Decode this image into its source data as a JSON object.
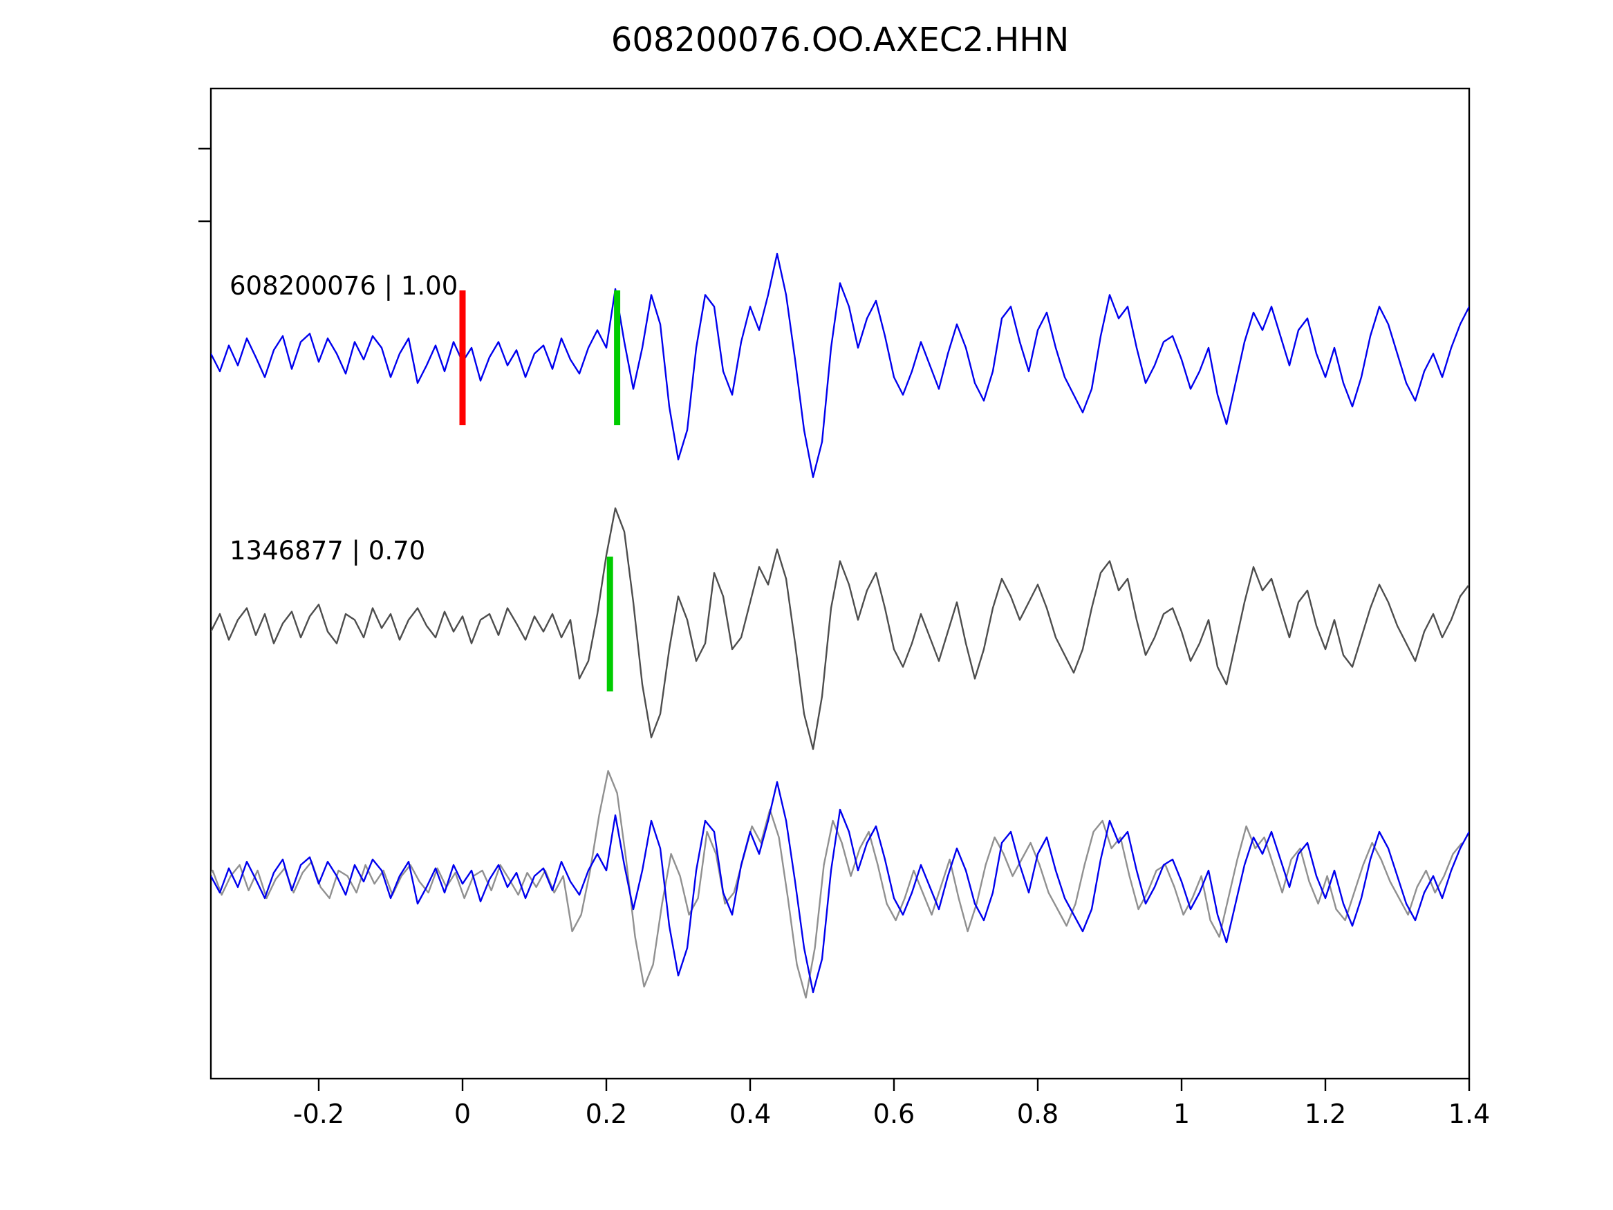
{
  "chart_data": {
    "type": "line",
    "title": "608200076.OO.AXEC2.HHN",
    "xlabel": "",
    "ylabel": "",
    "grid": false,
    "legend": "none",
    "xlim": [
      -0.35,
      1.4
    ],
    "x_start": -0.35,
    "x_step": 0.0125,
    "xticks": [
      -0.2,
      0,
      0.2,
      0.4,
      0.6,
      0.8,
      1,
      1.2,
      1.4
    ],
    "xtick_labels": [
      "-0.2",
      "0",
      "0.2",
      "0.4",
      "0.6",
      "0.8",
      "1",
      "1.2",
      "1.4"
    ],
    "colors": {
      "template_blue": "#0000ee",
      "detection_gray": "#4d4d4d",
      "overlay_gray": "#909090",
      "origin_red": "#ff0000",
      "pick_green": "#00cc00",
      "axis_black": "#000000"
    },
    "traces": [
      {
        "name": "template-608200076",
        "label": "608200076 | 1.00",
        "color": "#0000ee",
        "row": 0,
        "x_shift": 0,
        "values": [
          0.05,
          -0.1,
          0.12,
          -0.05,
          0.18,
          0.02,
          -0.15,
          0.08,
          0.2,
          -0.08,
          0.15,
          0.22,
          -0.02,
          0.18,
          0.05,
          -0.12,
          0.15,
          0,
          0.2,
          0.1,
          -0.15,
          0.05,
          0.18,
          -0.2,
          -0.05,
          0.12,
          -0.1,
          0.15,
          -0.02,
          0.1,
          -0.18,
          0.02,
          0.15,
          -0.05,
          0.08,
          -0.15,
          0.05,
          0.12,
          -0.08,
          0.18,
          0,
          -0.12,
          0.1,
          0.25,
          0.1,
          0.6,
          0.15,
          -0.25,
          0.1,
          0.55,
          0.3,
          -0.4,
          -0.85,
          -0.6,
          0.1,
          0.55,
          0.45,
          -0.1,
          -0.3,
          0.15,
          0.45,
          0.25,
          0.55,
          0.9,
          0.55,
          0,
          -0.6,
          -1,
          -0.7,
          0.1,
          0.65,
          0.45,
          0.1,
          0.35,
          0.5,
          0.2,
          -0.15,
          -0.3,
          -0.1,
          0.15,
          -0.05,
          -0.25,
          0.05,
          0.3,
          0.1,
          -0.2,
          -0.35,
          -0.1,
          0.35,
          0.45,
          0.15,
          -0.1,
          0.25,
          0.4,
          0.1,
          -0.15,
          -0.3,
          -0.45,
          -0.25,
          0.2,
          0.55,
          0.35,
          0.45,
          0.1,
          -0.2,
          -0.05,
          0.15,
          0.2,
          0,
          -0.25,
          -0.1,
          0.1,
          -0.3,
          -0.55,
          -0.2,
          0.15,
          0.4,
          0.25,
          0.45,
          0.2,
          -0.05,
          0.25,
          0.35,
          0.05,
          -0.15,
          0.1,
          -0.2,
          -0.4,
          -0.15,
          0.2,
          0.45,
          0.3,
          0.05,
          -0.2,
          -0.35,
          -0.1,
          0.05,
          -0.15,
          0.1,
          0.3,
          0.45
        ]
      },
      {
        "name": "detection-1346877",
        "label": "1346877 | 0.70",
        "color": "#4d4d4d",
        "row": 1,
        "x_shift": 0,
        "values": [
          -0.05,
          0.1,
          -0.12,
          0.05,
          0.15,
          -0.08,
          0.1,
          -0.15,
          0.02,
          0.12,
          -0.1,
          0.08,
          0.18,
          -0.05,
          -0.15,
          0.1,
          0.05,
          -0.1,
          0.15,
          -0.02,
          0.1,
          -0.12,
          0.05,
          0.15,
          0,
          -0.1,
          0.12,
          -0.05,
          0.08,
          -0.15,
          0.05,
          0.1,
          -0.08,
          0.15,
          0.02,
          -0.12,
          0.08,
          -0.05,
          0.1,
          -0.1,
          0.05,
          -0.45,
          -0.3,
          0.1,
          0.6,
          1,
          0.8,
          0.2,
          -0.5,
          -0.95,
          -0.75,
          -0.2,
          0.25,
          0.05,
          -0.3,
          -0.15,
          0.45,
          0.25,
          -0.2,
          -0.1,
          0.2,
          0.5,
          0.35,
          0.65,
          0.4,
          -0.15,
          -0.75,
          -1.05,
          -0.6,
          0.15,
          0.55,
          0.35,
          0.05,
          0.3,
          0.45,
          0.15,
          -0.2,
          -0.35,
          -0.15,
          0.1,
          -0.1,
          -0.3,
          -0.05,
          0.2,
          -0.15,
          -0.45,
          -0.2,
          0.15,
          0.4,
          0.25,
          0.05,
          0.2,
          0.35,
          0.15,
          -0.1,
          -0.25,
          -0.4,
          -0.2,
          0.15,
          0.45,
          0.55,
          0.3,
          0.4,
          0.05,
          -0.25,
          -0.1,
          0.1,
          0.15,
          -0.05,
          -0.3,
          -0.15,
          0.05,
          -0.35,
          -0.5,
          -0.15,
          0.2,
          0.5,
          0.3,
          0.4,
          0.15,
          -0.1,
          0.2,
          0.3,
          0,
          -0.2,
          0.05,
          -0.25,
          -0.35,
          -0.1,
          0.15,
          0.35,
          0.2,
          0,
          -0.15,
          -0.3,
          -0.05,
          0.1,
          -0.1,
          0.05,
          0.25,
          0.35
        ]
      },
      {
        "name": "overlay-detection-gray",
        "label": "",
        "color": "#909090",
        "row": 2,
        "x_shift": -0.01,
        "values_ref": 1
      },
      {
        "name": "overlay-template-blue",
        "label": "",
        "color": "#0000ee",
        "row": 2,
        "x_shift": 0,
        "values_ref": 0
      }
    ],
    "markers": [
      {
        "name": "origin-time-marker",
        "row": 0,
        "x": 0,
        "color": "#ff0000"
      },
      {
        "name": "pick-marker-template",
        "row": 0,
        "x": 0.215,
        "color": "#00cc00"
      },
      {
        "name": "pick-marker-detection",
        "row": 1,
        "x": 0.205,
        "color": "#00cc00"
      }
    ]
  }
}
